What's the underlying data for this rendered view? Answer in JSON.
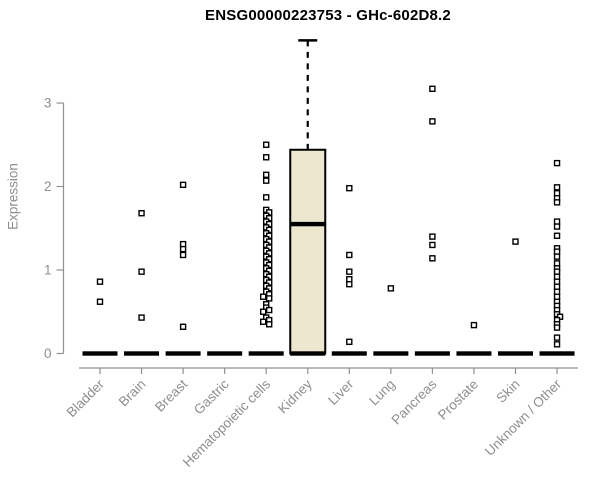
{
  "chart_data": {
    "type": "boxplot",
    "title": "ENSG00000223753 - GHc-602D8.2",
    "ylabel": "Expression",
    "xlabel": "",
    "ylim": [
      0,
      3.8
    ],
    "yticks": [
      "0",
      "1",
      "2",
      "3"
    ],
    "grid": false,
    "legend": null,
    "categories": [
      "Bladder",
      "Brain",
      "Breast",
      "Gastric",
      "Hematopoietic cells",
      "Kidney",
      "Liver",
      "Lung",
      "Pancreas",
      "Prostate",
      "Skin",
      "Unknown / Other"
    ],
    "boxes": [
      {
        "category": "Bladder",
        "q1": 0,
        "median": 0,
        "q3": 0,
        "whisker_low": 0,
        "whisker_high": 0,
        "outliers": [
          0.86,
          0.62
        ]
      },
      {
        "category": "Brain",
        "q1": 0,
        "median": 0,
        "q3": 0,
        "whisker_low": 0,
        "whisker_high": 0,
        "outliers": [
          1.68,
          0.98,
          0.43
        ]
      },
      {
        "category": "Breast",
        "q1": 0,
        "median": 0,
        "q3": 0,
        "whisker_low": 0,
        "whisker_high": 0,
        "outliers": [
          2.02,
          1.31,
          1.25,
          1.18,
          0.32
        ]
      },
      {
        "category": "Gastric",
        "q1": 0,
        "median": 0,
        "q3": 0,
        "whisker_low": 0,
        "whisker_high": 0,
        "outliers": []
      },
      {
        "category": "Hematopoietic cells",
        "q1": 0,
        "median": 0,
        "q3": 0,
        "whisker_low": 0,
        "whisker_high": 0,
        "outliers": [
          2.5,
          2.35,
          2.14,
          2.07,
          1.87,
          1.72,
          1.69,
          1.65,
          1.62,
          1.58,
          1.55,
          1.51,
          1.48,
          1.44,
          1.41,
          1.37,
          1.34,
          1.3,
          1.27,
          1.23,
          1.2,
          1.16,
          1.13,
          1.09,
          1.06,
          1.02,
          0.99,
          0.95,
          0.92,
          0.88,
          0.85,
          0.81,
          0.78,
          0.74,
          0.71,
          0.68,
          0.66,
          0.59,
          0.55,
          0.52,
          0.5,
          0.43,
          0.4,
          0.38,
          0.35
        ]
      },
      {
        "category": "Kidney",
        "q1": 0,
        "median": 1.55,
        "q3": 2.44,
        "whisker_low": 0,
        "whisker_high": 3.75,
        "outliers": []
      },
      {
        "category": "Liver",
        "q1": 0,
        "median": 0,
        "q3": 0,
        "whisker_low": 0,
        "whisker_high": 0,
        "outliers": [
          1.98,
          1.18,
          0.98,
          0.89,
          0.83,
          0.14
        ]
      },
      {
        "category": "Lung",
        "q1": 0,
        "median": 0,
        "q3": 0,
        "whisker_low": 0,
        "whisker_high": 0,
        "outliers": [
          0.78
        ]
      },
      {
        "category": "Pancreas",
        "q1": 0,
        "median": 0,
        "q3": 0,
        "whisker_low": 0,
        "whisker_high": 0,
        "outliers": [
          3.17,
          2.78,
          1.4,
          1.3,
          1.14
        ]
      },
      {
        "category": "Prostate",
        "q1": 0,
        "median": 0,
        "q3": 0,
        "whisker_low": 0,
        "whisker_high": 0,
        "outliers": [
          0.34
        ]
      },
      {
        "category": "Skin",
        "q1": 0,
        "median": 0,
        "q3": 0,
        "whisker_low": 0,
        "whisker_high": 0,
        "outliers": [
          1.34
        ]
      },
      {
        "category": "Unknown / Other",
        "q1": 0,
        "median": 0,
        "q3": 0,
        "whisker_low": 0,
        "whisker_high": 0,
        "outliers": [
          2.28,
          1.99,
          1.92,
          1.86,
          1.81,
          1.58,
          1.52,
          1.41,
          1.26,
          1.22,
          1.16,
          1.08,
          1.02,
          0.98,
          0.92,
          0.86,
          0.8,
          0.74,
          0.68,
          0.62,
          0.57,
          0.52,
          0.47,
          0.44,
          0.4,
          0.35,
          0.31,
          0.19,
          0.11
        ]
      }
    ],
    "colors": {
      "box_fill": "#EDE7CF",
      "box_border": "#000000",
      "median_line": "#000000",
      "outlier_stroke": "#000000",
      "outlier_fill": "#ffffff",
      "axis": "#919191",
      "label_text": "#8e8e8e",
      "title_text": "#000000",
      "background": "#ffffff"
    }
  }
}
